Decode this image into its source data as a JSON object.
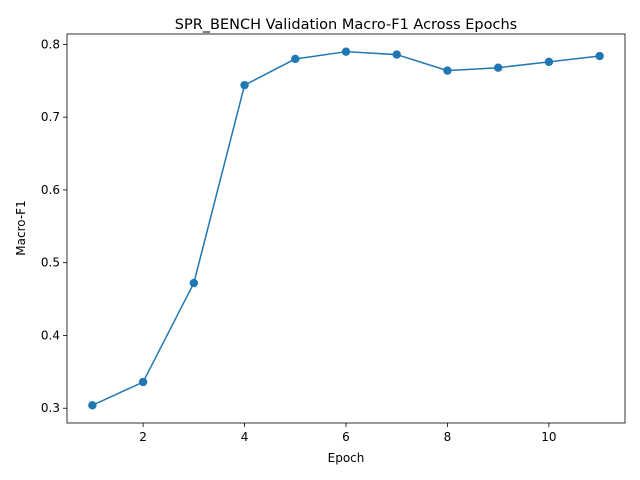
{
  "chart_data": {
    "type": "line",
    "title": "SPR_BENCH Validation Macro-F1 Across Epochs",
    "xlabel": "Epoch",
    "ylabel": "Macro-F1",
    "x": [
      1,
      2,
      3,
      4,
      5,
      6,
      7,
      8,
      9,
      10,
      11
    ],
    "series": [
      {
        "values": [
          0.304,
          0.336,
          0.472,
          0.744,
          0.78,
          0.79,
          0.786,
          0.764,
          0.768,
          0.776,
          0.784
        ],
        "color": "#1f77b4",
        "marker": "circle"
      }
    ],
    "xlim": [
      0.5,
      11.5
    ],
    "ylim": [
      0.2797,
      0.8143
    ],
    "xticks": [
      2,
      4,
      6,
      8,
      10
    ],
    "yticks": [
      0.3,
      0.4,
      0.5,
      0.6,
      0.7,
      0.8
    ],
    "ytick_labels": [
      "0.3",
      "0.4",
      "0.5",
      "0.6",
      "0.7",
      "0.8"
    ],
    "grid": false,
    "legend": "none"
  }
}
